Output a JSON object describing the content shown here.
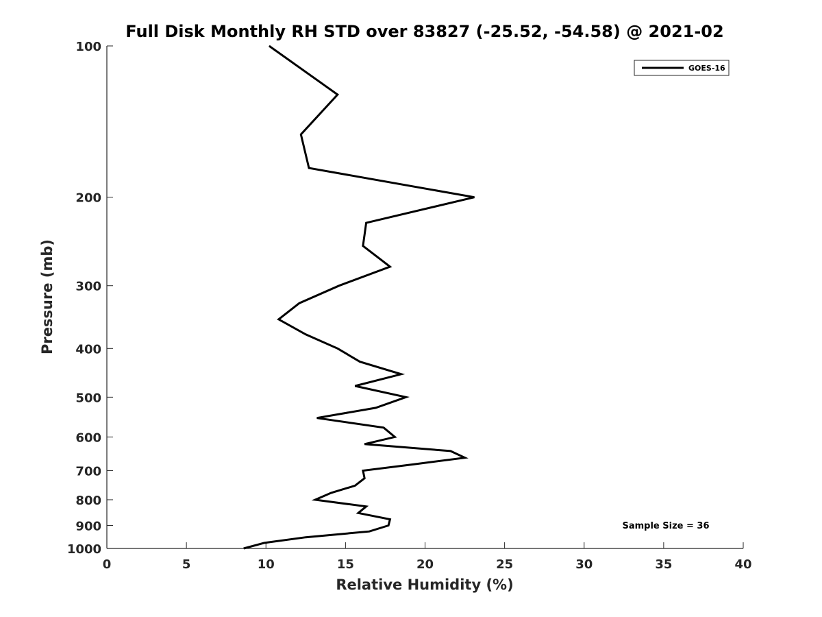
{
  "chart_data": {
    "type": "line",
    "title": "Full Disk Monthly RH STD over 83827 (-25.52, -54.58) @ 2021-02",
    "xlabel": "Relative Humidity (%)",
    "ylabel": "Pressure (mb)",
    "xlim": [
      0,
      40
    ],
    "ylim": [
      100,
      1000
    ],
    "y_scale": "log",
    "y_reversed": true,
    "x_ticks": [
      0,
      5,
      10,
      15,
      20,
      25,
      30,
      35,
      40
    ],
    "y_ticks": [
      100,
      200,
      300,
      400,
      500,
      600,
      700,
      800,
      900,
      1000
    ],
    "grid": false,
    "legend_position": "top-right",
    "series": [
      {
        "name": "GOES-16",
        "color": "#000000",
        "points": [
          {
            "x": 10.2,
            "y": 100
          },
          {
            "x": 14.5,
            "y": 125
          },
          {
            "x": 12.2,
            "y": 150
          },
          {
            "x": 12.7,
            "y": 175
          },
          {
            "x": 23.1,
            "y": 200
          },
          {
            "x": 16.3,
            "y": 225
          },
          {
            "x": 16.1,
            "y": 250
          },
          {
            "x": 17.8,
            "y": 275
          },
          {
            "x": 14.6,
            "y": 300
          },
          {
            "x": 12.1,
            "y": 325
          },
          {
            "x": 10.8,
            "y": 350
          },
          {
            "x": 12.5,
            "y": 375
          },
          {
            "x": 14.5,
            "y": 400
          },
          {
            "x": 15.9,
            "y": 425
          },
          {
            "x": 18.5,
            "y": 450
          },
          {
            "x": 15.6,
            "y": 475
          },
          {
            "x": 18.8,
            "y": 500
          },
          {
            "x": 16.9,
            "y": 525
          },
          {
            "x": 13.2,
            "y": 550
          },
          {
            "x": 17.4,
            "y": 575
          },
          {
            "x": 18.1,
            "y": 600
          },
          {
            "x": 16.2,
            "y": 620
          },
          {
            "x": 21.6,
            "y": 640
          },
          {
            "x": 22.5,
            "y": 660
          },
          {
            "x": 19.3,
            "y": 680
          },
          {
            "x": 16.1,
            "y": 700
          },
          {
            "x": 16.2,
            "y": 725
          },
          {
            "x": 15.6,
            "y": 750
          },
          {
            "x": 14.1,
            "y": 775
          },
          {
            "x": 13.1,
            "y": 800
          },
          {
            "x": 16.3,
            "y": 825
          },
          {
            "x": 15.8,
            "y": 850
          },
          {
            "x": 17.8,
            "y": 875
          },
          {
            "x": 17.7,
            "y": 900
          },
          {
            "x": 16.5,
            "y": 925
          },
          {
            "x": 12.5,
            "y": 950
          },
          {
            "x": 9.9,
            "y": 975
          },
          {
            "x": 8.6,
            "y": 1000
          }
        ]
      }
    ],
    "annotations": [
      {
        "text": "Sample Size = 36",
        "position": "bottom-right"
      }
    ]
  }
}
